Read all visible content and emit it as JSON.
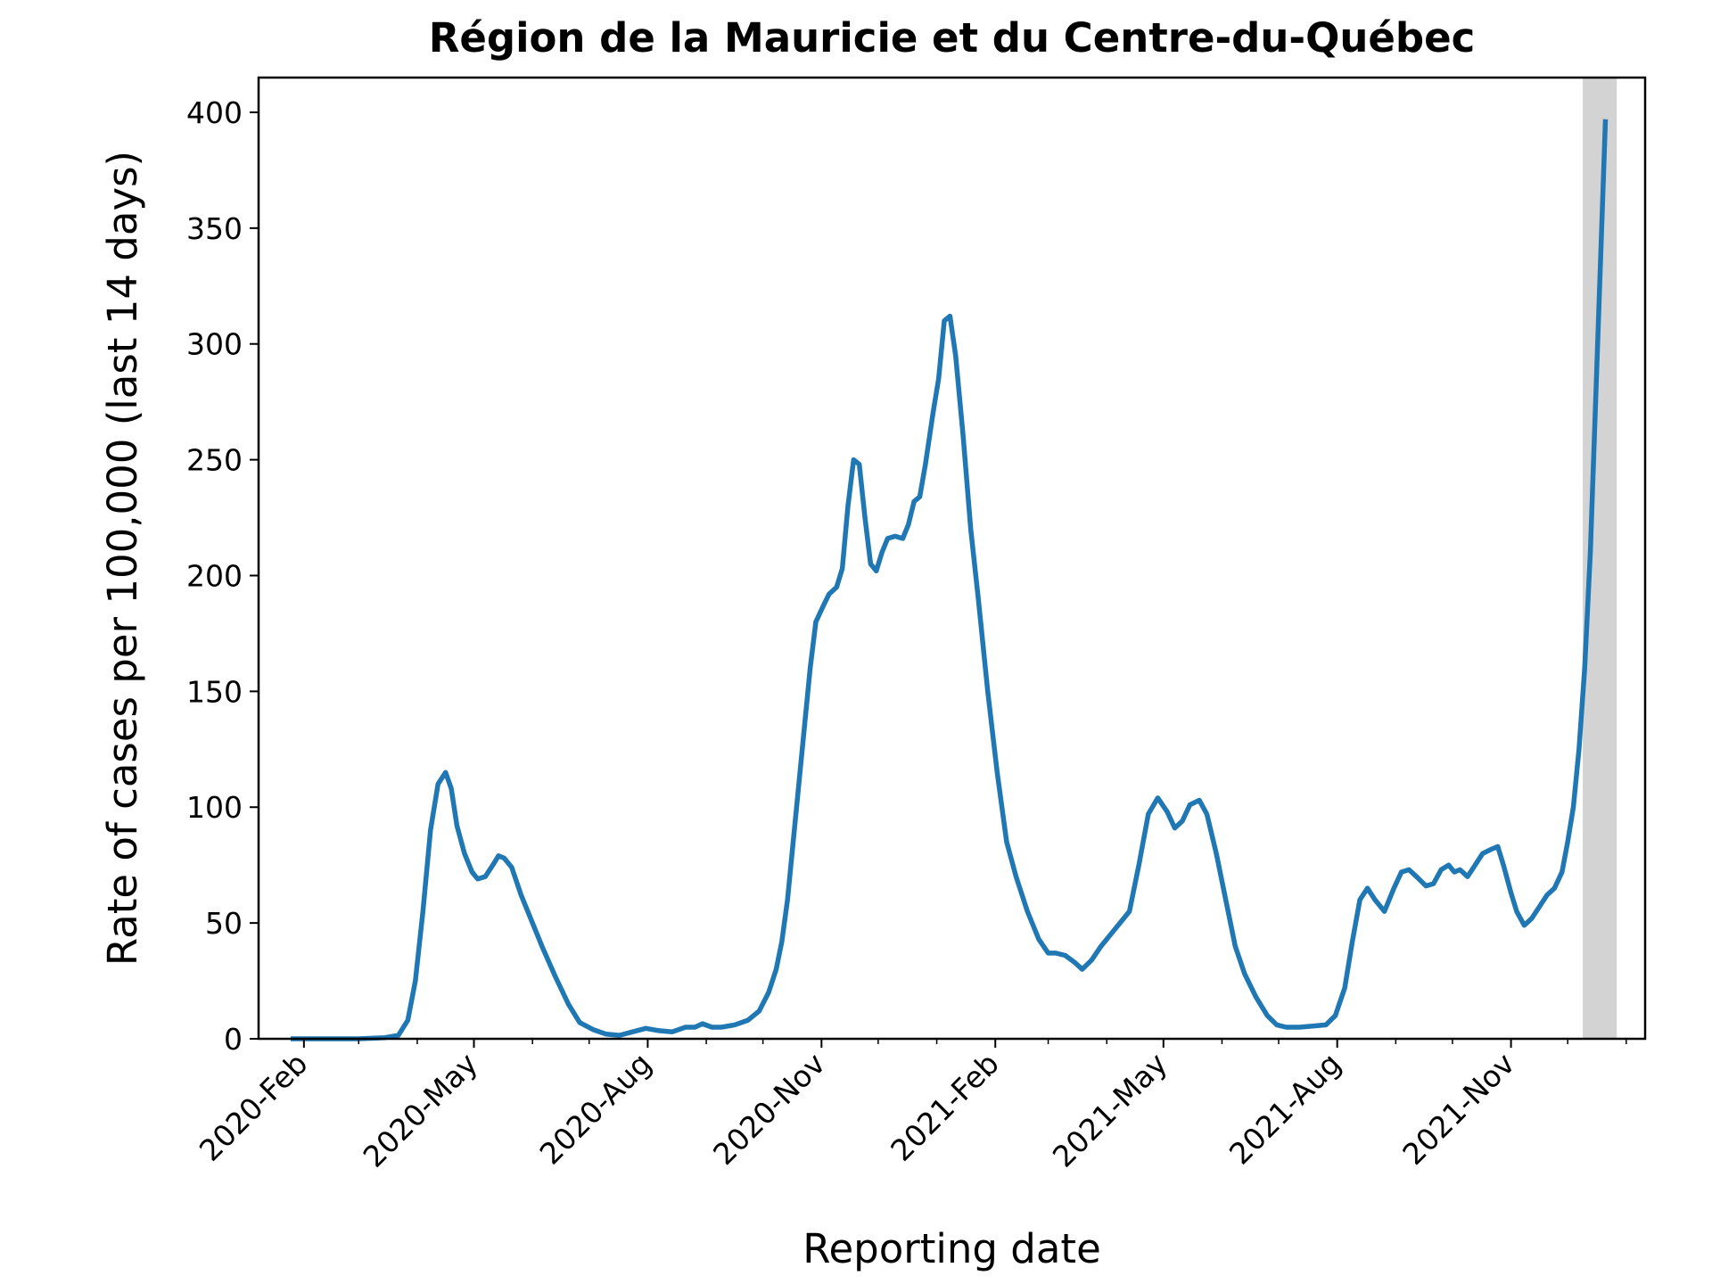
{
  "chart_data": {
    "type": "line",
    "title": "Région de la Mauricie et du Centre-du-Québec",
    "xlabel": "Reporting date",
    "ylabel": "Rate of cases per 100,000 (last 14 days)",
    "ylim": [
      0,
      415
    ],
    "xlim": [
      "2020-01-08",
      "2022-01-11"
    ],
    "yticks": [
      0,
      50,
      100,
      150,
      200,
      250,
      300,
      350,
      400
    ],
    "xticks": [
      {
        "date": "2020-02-01",
        "label": "2020-Feb"
      },
      {
        "date": "2020-05-01",
        "label": "2020-May"
      },
      {
        "date": "2020-08-01",
        "label": "2020-Aug"
      },
      {
        "date": "2020-11-01",
        "label": "2020-Nov"
      },
      {
        "date": "2021-02-01",
        "label": "2021-Feb"
      },
      {
        "date": "2021-05-01",
        "label": "2021-May"
      },
      {
        "date": "2021-08-01",
        "label": "2021-Aug"
      },
      {
        "date": "2021-11-01",
        "label": "2021-Nov"
      }
    ],
    "minor_xticks": [
      "2020-03-01",
      "2020-04-01",
      "2020-06-01",
      "2020-07-01",
      "2020-09-01",
      "2020-10-01",
      "2020-12-01",
      "2021-01-01",
      "2021-03-01",
      "2021-04-01",
      "2021-06-01",
      "2021-07-01",
      "2021-09-01",
      "2021-10-01",
      "2021-12-01",
      "2022-01-01"
    ],
    "shaded_region": {
      "from": "2021-12-09",
      "to": "2021-12-27",
      "color": "#d3d3d3"
    },
    "grid": false,
    "series": [
      {
        "color": "#1f77b4",
        "points": [
          [
            "2020-01-25",
            0
          ],
          [
            "2020-02-15",
            0
          ],
          [
            "2020-03-01",
            0
          ],
          [
            "2020-03-15",
            0.5
          ],
          [
            "2020-03-22",
            1.5
          ],
          [
            "2020-03-27",
            8
          ],
          [
            "2020-03-31",
            25
          ],
          [
            "2020-04-04",
            55
          ],
          [
            "2020-04-08",
            90
          ],
          [
            "2020-04-12",
            110
          ],
          [
            "2020-04-16",
            115
          ],
          [
            "2020-04-19",
            108
          ],
          [
            "2020-04-22",
            92
          ],
          [
            "2020-04-26",
            80
          ],
          [
            "2020-04-30",
            72
          ],
          [
            "2020-05-03",
            69
          ],
          [
            "2020-05-07",
            70
          ],
          [
            "2020-05-11",
            75
          ],
          [
            "2020-05-14",
            79
          ],
          [
            "2020-05-17",
            78
          ],
          [
            "2020-05-21",
            74
          ],
          [
            "2020-05-26",
            62
          ],
          [
            "2020-05-31",
            52
          ],
          [
            "2020-06-06",
            40
          ],
          [
            "2020-06-13",
            27
          ],
          [
            "2020-06-20",
            15
          ],
          [
            "2020-06-26",
            7
          ],
          [
            "2020-07-03",
            4
          ],
          [
            "2020-07-10",
            2
          ],
          [
            "2020-07-17",
            1.5
          ],
          [
            "2020-07-24",
            3
          ],
          [
            "2020-07-31",
            4.5
          ],
          [
            "2020-08-07",
            3.5
          ],
          [
            "2020-08-14",
            3
          ],
          [
            "2020-08-21",
            5
          ],
          [
            "2020-08-26",
            5
          ],
          [
            "2020-08-30",
            6.5
          ],
          [
            "2020-09-04",
            5
          ],
          [
            "2020-09-09",
            5
          ],
          [
            "2020-09-16",
            6
          ],
          [
            "2020-09-23",
            8
          ],
          [
            "2020-09-29",
            12
          ],
          [
            "2020-10-04",
            20
          ],
          [
            "2020-10-08",
            30
          ],
          [
            "2020-10-11",
            42
          ],
          [
            "2020-10-14",
            60
          ],
          [
            "2020-10-17",
            85
          ],
          [
            "2020-10-20",
            110
          ],
          [
            "2020-10-23",
            135
          ],
          [
            "2020-10-26",
            160
          ],
          [
            "2020-10-29",
            180
          ],
          [
            "2020-11-02",
            187
          ],
          [
            "2020-11-05",
            192
          ],
          [
            "2020-11-09",
            195
          ],
          [
            "2020-11-12",
            203
          ],
          [
            "2020-11-15",
            230
          ],
          [
            "2020-11-18",
            250
          ],
          [
            "2020-11-21",
            248
          ],
          [
            "2020-11-24",
            225
          ],
          [
            "2020-11-27",
            205
          ],
          [
            "2020-11-30",
            202
          ],
          [
            "2020-12-03",
            210
          ],
          [
            "2020-12-06",
            216
          ],
          [
            "2020-12-10",
            217
          ],
          [
            "2020-12-14",
            216
          ],
          [
            "2020-12-17",
            222
          ],
          [
            "2020-12-20",
            232
          ],
          [
            "2020-12-23",
            234
          ],
          [
            "2020-12-26",
            248
          ],
          [
            "2020-12-30",
            270
          ],
          [
            "2021-01-02",
            285
          ],
          [
            "2021-01-05",
            310
          ],
          [
            "2021-01-08",
            312
          ],
          [
            "2021-01-11",
            295
          ],
          [
            "2021-01-15",
            260
          ],
          [
            "2021-01-19",
            220
          ],
          [
            "2021-01-23",
            190
          ],
          [
            "2021-01-28",
            150
          ],
          [
            "2021-02-02",
            115
          ],
          [
            "2021-02-07",
            85
          ],
          [
            "2021-02-12",
            70
          ],
          [
            "2021-02-18",
            55
          ],
          [
            "2021-02-24",
            43
          ],
          [
            "2021-03-01",
            37
          ],
          [
            "2021-03-05",
            37
          ],
          [
            "2021-03-10",
            36
          ],
          [
            "2021-03-15",
            33
          ],
          [
            "2021-03-19",
            30
          ],
          [
            "2021-03-24",
            34
          ],
          [
            "2021-03-29",
            40
          ],
          [
            "2021-04-03",
            45
          ],
          [
            "2021-04-08",
            50
          ],
          [
            "2021-04-13",
            55
          ],
          [
            "2021-04-18",
            75
          ],
          [
            "2021-04-23",
            97
          ],
          [
            "2021-04-28",
            104
          ],
          [
            "2021-05-03",
            98
          ],
          [
            "2021-05-07",
            91
          ],
          [
            "2021-05-11",
            94
          ],
          [
            "2021-05-15",
            101
          ],
          [
            "2021-05-20",
            103
          ],
          [
            "2021-05-24",
            97
          ],
          [
            "2021-05-29",
            80
          ],
          [
            "2021-06-03",
            60
          ],
          [
            "2021-06-08",
            40
          ],
          [
            "2021-06-13",
            28
          ],
          [
            "2021-06-19",
            18
          ],
          [
            "2021-06-25",
            10
          ],
          [
            "2021-06-30",
            6
          ],
          [
            "2021-07-05",
            5
          ],
          [
            "2021-07-12",
            5
          ],
          [
            "2021-07-19",
            5.5
          ],
          [
            "2021-07-26",
            6
          ],
          [
            "2021-07-31",
            10
          ],
          [
            "2021-08-05",
            22
          ],
          [
            "2021-08-09",
            42
          ],
          [
            "2021-08-13",
            60
          ],
          [
            "2021-08-17",
            65
          ],
          [
            "2021-08-21",
            60
          ],
          [
            "2021-08-26",
            55
          ],
          [
            "2021-08-31",
            65
          ],
          [
            "2021-09-04",
            72
          ],
          [
            "2021-09-08",
            73
          ],
          [
            "2021-09-12",
            70
          ],
          [
            "2021-09-17",
            66
          ],
          [
            "2021-09-21",
            67
          ],
          [
            "2021-09-25",
            73
          ],
          [
            "2021-09-29",
            75
          ],
          [
            "2021-10-02",
            72
          ],
          [
            "2021-10-05",
            73
          ],
          [
            "2021-10-09",
            70
          ],
          [
            "2021-10-13",
            75
          ],
          [
            "2021-10-17",
            80
          ],
          [
            "2021-10-22",
            82
          ],
          [
            "2021-10-25",
            83
          ],
          [
            "2021-10-28",
            75
          ],
          [
            "2021-11-01",
            63
          ],
          [
            "2021-11-04",
            55
          ],
          [
            "2021-11-08",
            49
          ],
          [
            "2021-11-12",
            52
          ],
          [
            "2021-11-16",
            57
          ],
          [
            "2021-11-20",
            62
          ],
          [
            "2021-11-24",
            65
          ],
          [
            "2021-11-28",
            72
          ],
          [
            "2021-12-01",
            85
          ],
          [
            "2021-12-04",
            100
          ],
          [
            "2021-12-07",
            125
          ],
          [
            "2021-12-10",
            160
          ],
          [
            "2021-12-13",
            210
          ],
          [
            "2021-12-16",
            280
          ],
          [
            "2021-12-19",
            350
          ],
          [
            "2021-12-21",
            397
          ]
        ]
      }
    ]
  }
}
